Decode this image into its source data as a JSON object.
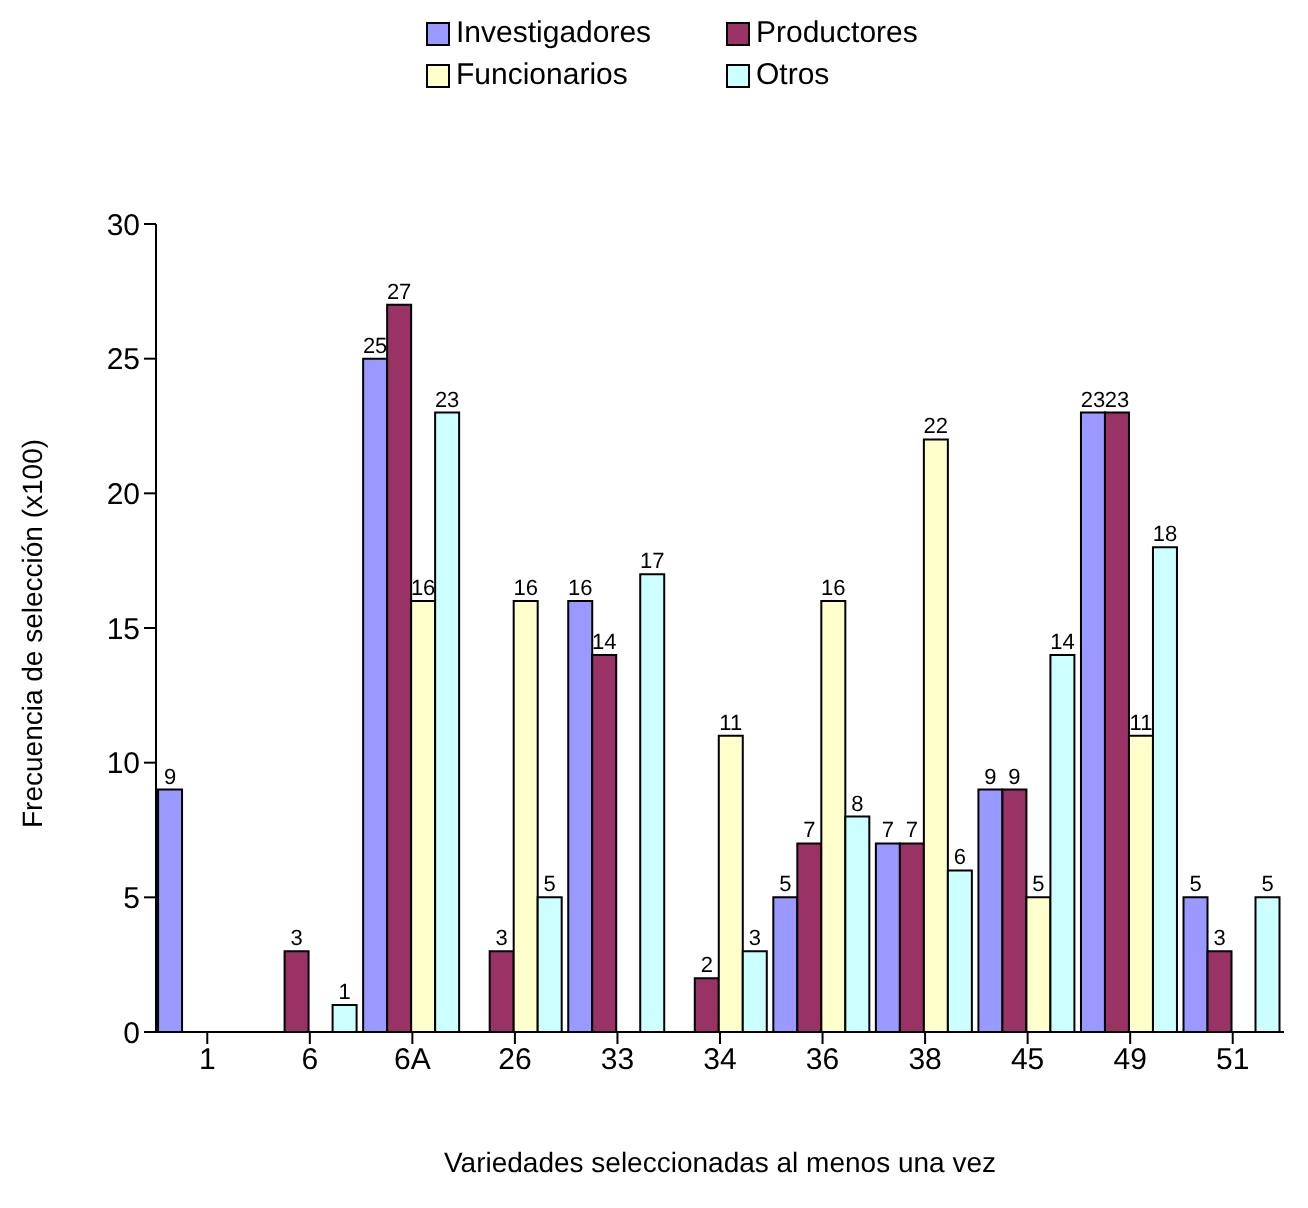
{
  "chart_data": {
    "type": "bar",
    "xlabel": "Variedades seleccionadas al menos una vez",
    "ylabel": "Frecuencia de selección (x100)",
    "categories": [
      "1",
      "6",
      "6A",
      "26",
      "33",
      "34",
      "36",
      "38",
      "45",
      "49",
      "51"
    ],
    "series": [
      {
        "name": "Investigadores",
        "color": "#9999ff",
        "values": [
          9,
          null,
          25,
          null,
          16,
          null,
          5,
          7,
          9,
          23,
          5
        ]
      },
      {
        "name": "Productores",
        "color": "#993366",
        "values": [
          null,
          3,
          27,
          3,
          14,
          2,
          7,
          7,
          9,
          23,
          3
        ]
      },
      {
        "name": "Funcionarios",
        "color": "#ffffcc",
        "values": [
          null,
          null,
          16,
          16,
          null,
          11,
          16,
          22,
          5,
          11,
          null
        ]
      },
      {
        "name": "Otros",
        "color": "#ccffff",
        "values": [
          null,
          1,
          23,
          5,
          17,
          3,
          8,
          6,
          14,
          18,
          5
        ]
      }
    ],
    "ylim": [
      0,
      30
    ],
    "yticks": [
      0,
      5,
      10,
      15,
      20,
      25,
      30
    ],
    "legend": "top",
    "data_labels": true
  }
}
